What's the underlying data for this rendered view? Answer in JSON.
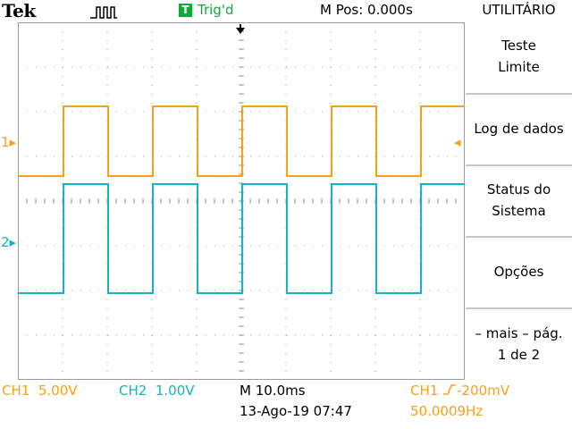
{
  "header": {
    "brand": "Tek",
    "trigger_badge": "T",
    "trigger_status": "Trig'd",
    "m_pos": "M Pos: 0.000s",
    "menu_title": "UTILITÁRIO"
  },
  "menu": {
    "items": [
      {
        "line1": "Teste",
        "line2": "Limite"
      },
      {
        "line1": "Log de dados",
        "line2": ""
      },
      {
        "line1": "Status do",
        "line2": "Sistema"
      },
      {
        "line1": "Opções",
        "line2": ""
      },
      {
        "line1": "– mais – pág.",
        "line2": "1 de 2"
      }
    ]
  },
  "channels": {
    "ch1": {
      "label": "CH1",
      "scale": "5.00V",
      "marker": "1",
      "color": "#f5a11a"
    },
    "ch2": {
      "label": "CH2",
      "scale": "1.00V",
      "marker": "2",
      "color": "#16b4c0"
    }
  },
  "footer": {
    "timebase": "M 10.0ms",
    "datetime": "13-Ago-19 07:47",
    "trigger_channel": "CH1",
    "trigger_level": "-200mV",
    "frequency": "50.0009Hz"
  },
  "colors": {
    "ch1": "#f5a11a",
    "ch2": "#16b4c0",
    "trigger_badge": "#14a83c",
    "grid": "#9a9a9a"
  }
}
